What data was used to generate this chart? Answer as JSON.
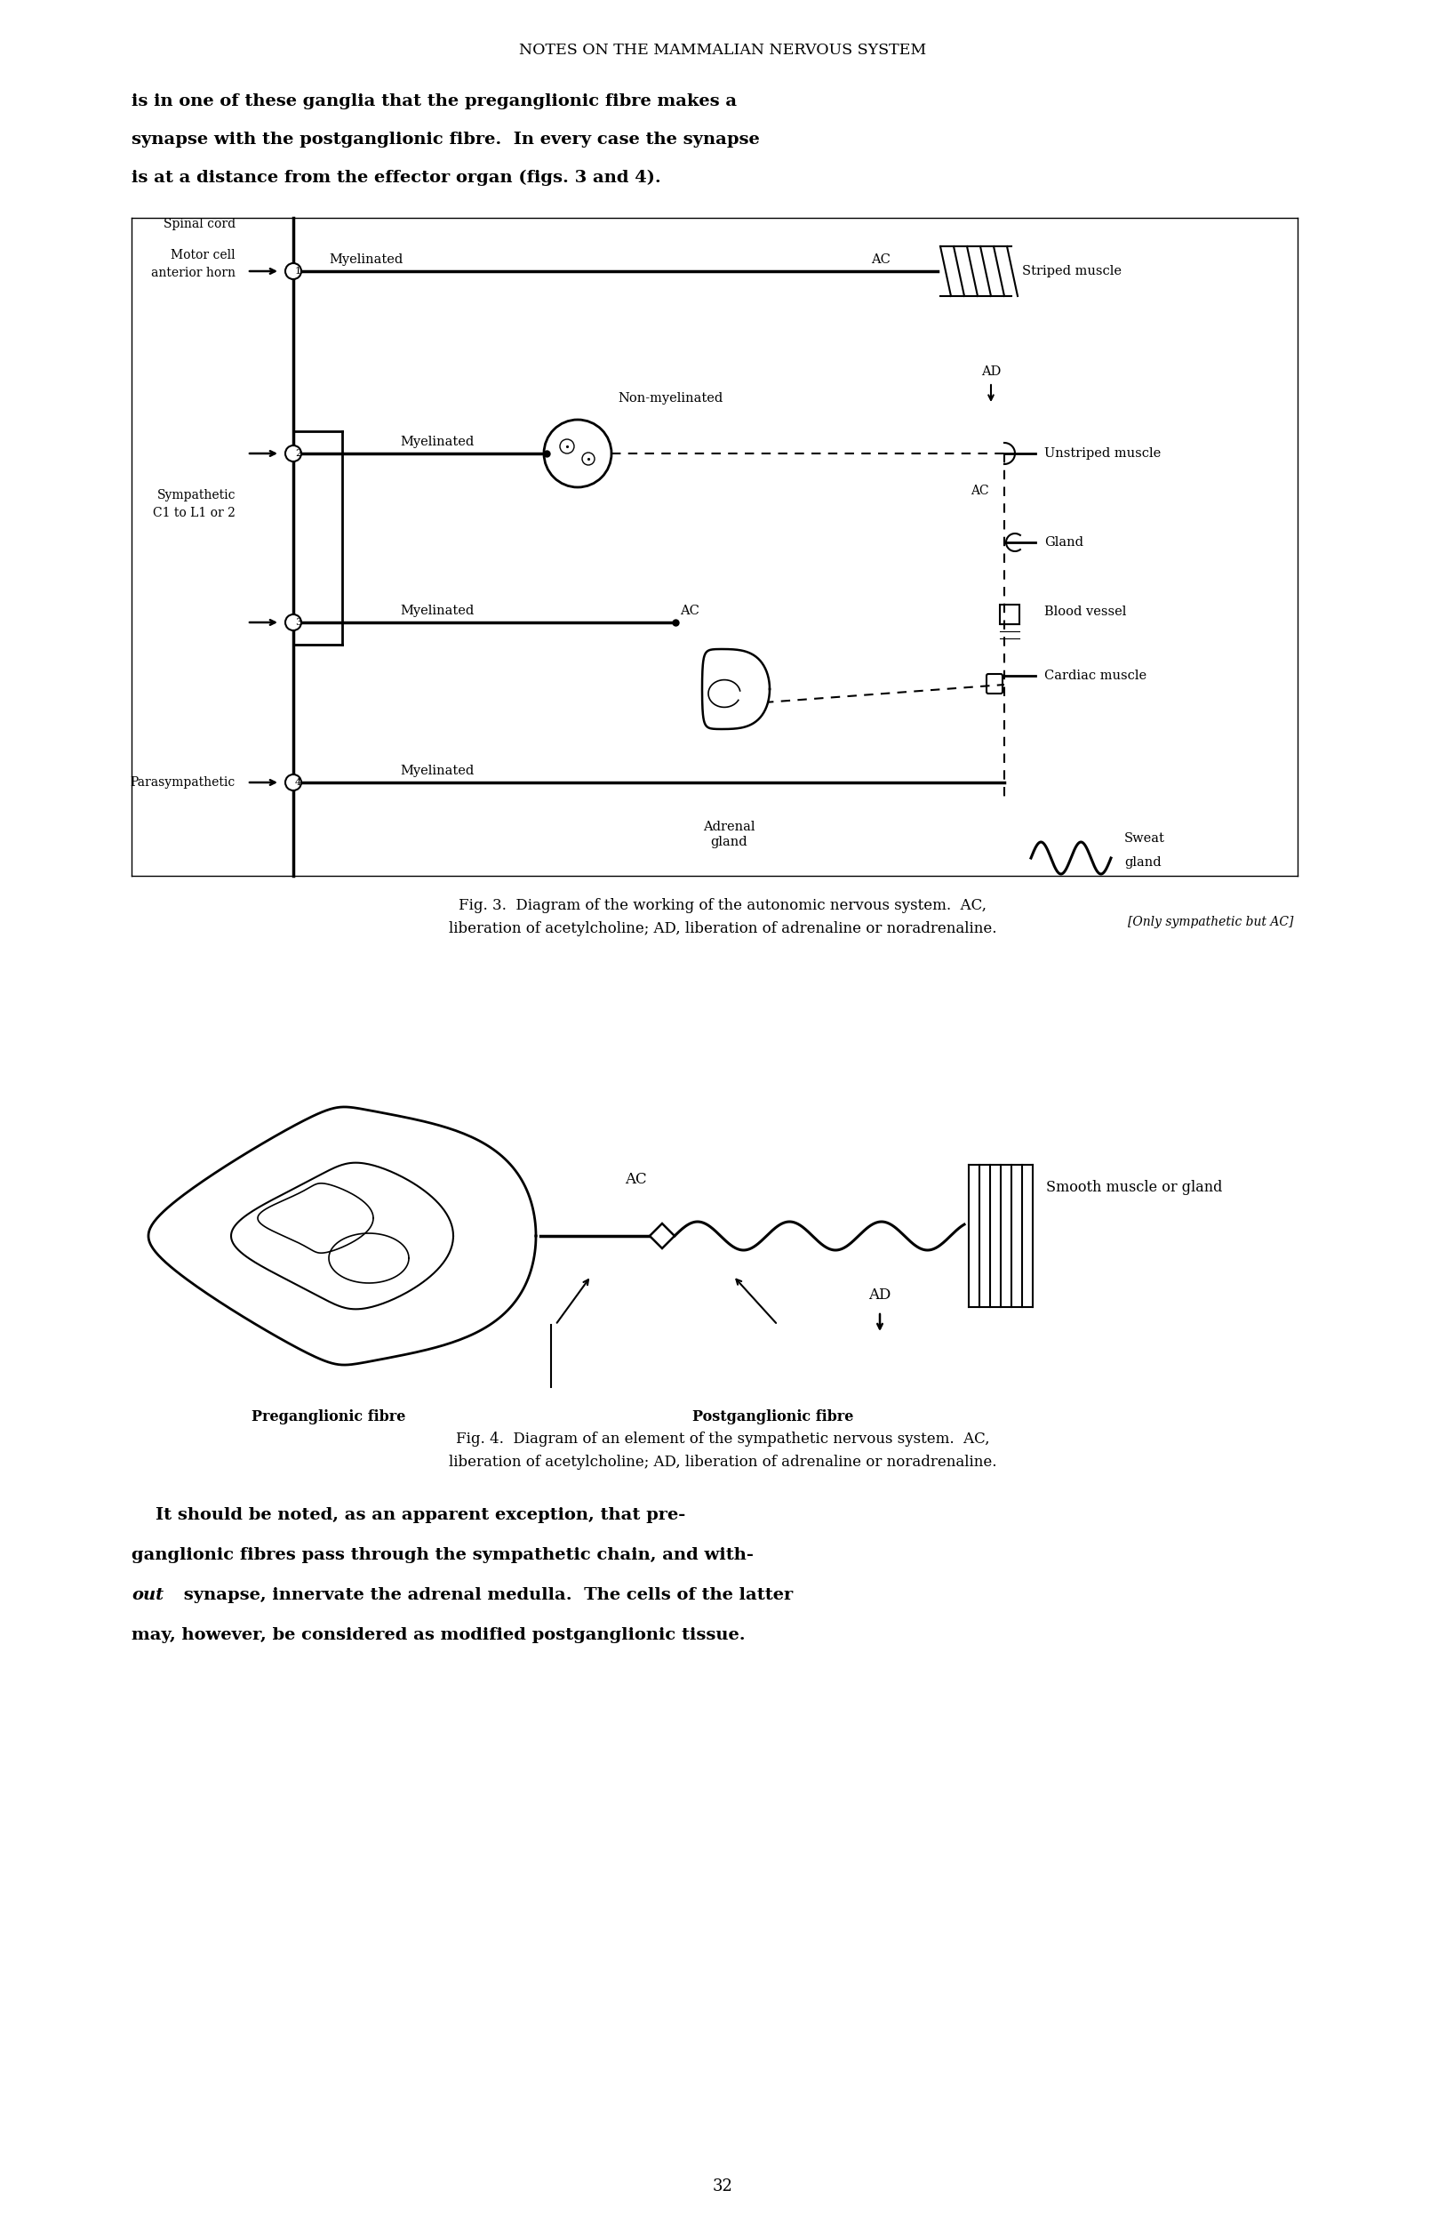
{
  "page_title": "NOTES ON THE MAMMALIAN NERVOUS SYSTEM",
  "para1_lines": [
    "is in one of these ganglia that the preganglionic fibre makes a",
    "synapse with the postganglionic fibre.  In every case the synapse",
    "is at a distance from the effector organ (figs. 3 and 4)."
  ],
  "fig3_caption_line1": "Fig. 3.  Diagram of the working of the autonomic nervous system.  AC,",
  "fig3_caption_line2": "liberation of acetylcholine; AD, liberation of adrenaline or noradrenaline.",
  "fig4_caption_line1": "Fig. 4.  Diagram of an element of the sympathetic nervous system.  AC,",
  "fig4_caption_line2": "liberation of acetylcholine; AD, liberation of adrenaline or noradrenaline.",
  "para2_lines": [
    [
      "    It should be noted, as an apparent exception, that pre-",
      "normal"
    ],
    [
      "ganglionic fibres pass through the sympathetic chain, and with-",
      "normal"
    ],
    [
      "out synapse, innervate the adrenal medulla.  The cells of the latter",
      "italic_start"
    ],
    [
      "may, however, be considered as modified postganglionic tissue.",
      "normal"
    ]
  ],
  "page_number": "32",
  "bg_color": "#ffffff",
  "text_color": "#000000"
}
